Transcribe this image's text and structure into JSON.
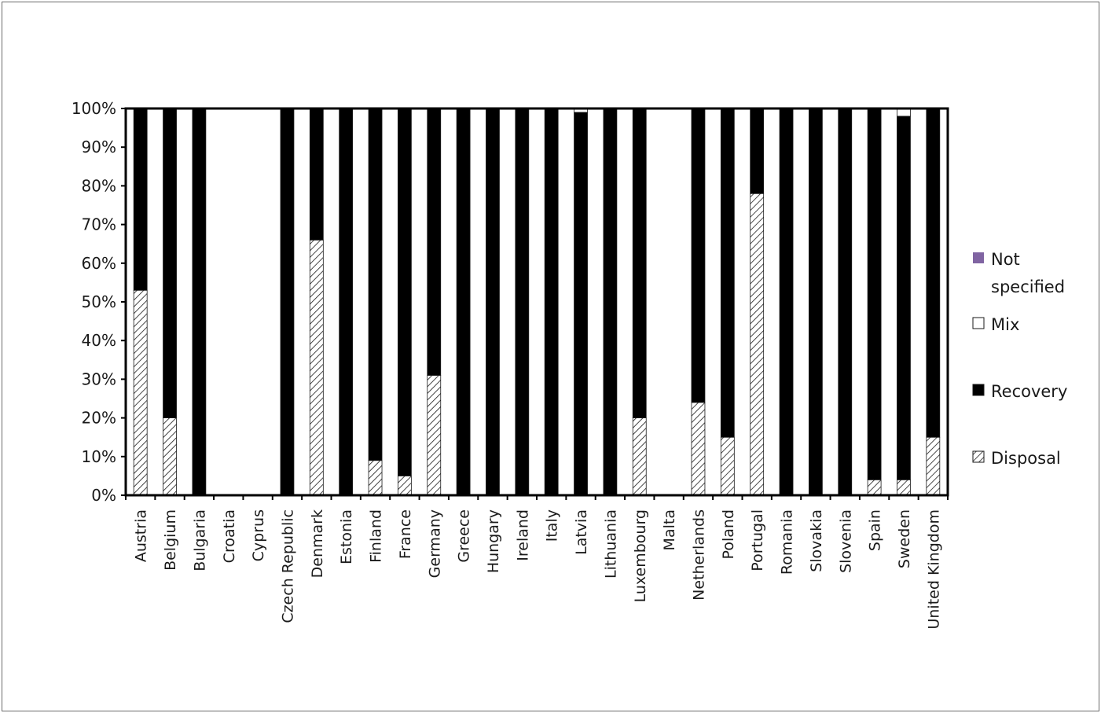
{
  "chart_data": {
    "type": "bar",
    "stacked": true,
    "normalized": true,
    "title": "",
    "xlabel": "",
    "ylabel": "",
    "ylim": [
      0,
      100
    ],
    "y_ticks": [
      "0%",
      "10%",
      "20%",
      "30%",
      "40%",
      "50%",
      "60%",
      "70%",
      "80%",
      "90%",
      "100%"
    ],
    "grid": false,
    "legend_position": "right",
    "categories": [
      "Austria",
      "Belgium",
      "Bulgaria",
      "Croatia",
      "Cyprus",
      "Czech Republic",
      "Denmark",
      "Estonia",
      "Finland",
      "France",
      "Germany",
      "Greece",
      "Hungary",
      "Ireland",
      "Italy",
      "Latvia",
      "Lithuania",
      "Luxembourg",
      "Malta",
      "Netherlands",
      "Poland",
      "Portugal",
      "Romania",
      "Slovakia",
      "Slovenia",
      "Spain",
      "Sweden",
      "United Kingdom"
    ],
    "series": [
      {
        "name": "Disposal",
        "fill": "hatch",
        "color": "#ffffff",
        "values": [
          53,
          20,
          0,
          0,
          0,
          0,
          66,
          0,
          9,
          5,
          31,
          0,
          0,
          0,
          0,
          0,
          0,
          20,
          0,
          24,
          15,
          78,
          0,
          0,
          0,
          4,
          4,
          15
        ]
      },
      {
        "name": "Recovery",
        "fill": "solid",
        "color": "#000000",
        "values": [
          47,
          80,
          100,
          0,
          0,
          100,
          34,
          100,
          91,
          95,
          69,
          100,
          100,
          100,
          100,
          99,
          100,
          80,
          0,
          76,
          85,
          22,
          100,
          100,
          100,
          96,
          94,
          85
        ]
      },
      {
        "name": "Mix",
        "fill": "solid",
        "color": "#ffffff",
        "values": [
          0,
          0,
          0,
          0,
          0,
          0,
          0,
          0,
          0,
          0,
          0,
          0,
          0,
          0,
          0,
          1,
          0,
          0,
          0,
          0,
          0,
          0,
          0,
          0,
          0,
          0,
          2,
          0
        ]
      },
      {
        "name": "Not specified",
        "fill": "solid",
        "color": "#8064a2",
        "values": [
          0,
          0,
          0,
          0,
          0,
          0,
          0,
          0,
          0,
          0,
          0,
          0,
          0,
          0,
          0,
          0,
          0,
          0,
          0,
          0,
          0,
          0,
          0,
          0,
          0,
          0,
          0,
          0
        ]
      }
    ],
    "legend": [
      {
        "label_lines": [
          "Not",
          "specified"
        ],
        "color": "#8064a2",
        "fill": "solid"
      },
      {
        "label_lines": [
          "Mix"
        ],
        "color": "#ffffff",
        "fill": "solid"
      },
      {
        "label_lines": [
          "Recovery"
        ],
        "color": "#000000",
        "fill": "solid"
      },
      {
        "label_lines": [
          "Disposal"
        ],
        "color": "#ffffff",
        "fill": "hatch"
      }
    ]
  }
}
